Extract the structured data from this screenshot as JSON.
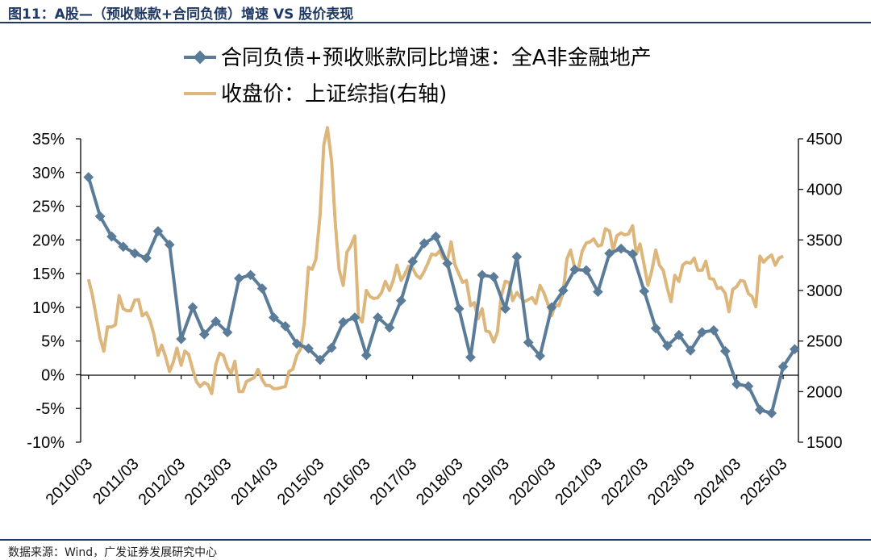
{
  "figure": {
    "title": "图11：A股—（预收账款+合同负债）增速 VS 股价表现",
    "source": "数据来源：Wind，广发证券发展研究中心"
  },
  "chart_data": {
    "type": "line",
    "dual_axis": true,
    "x_ticks": [
      "2010/03",
      "2011/03",
      "2012/03",
      "2013/03",
      "2014/03",
      "2015/03",
      "2016/03",
      "2017/03",
      "2018/03",
      "2019/03",
      "2020/03",
      "2021/03",
      "2022/03",
      "2023/03",
      "2024/03",
      "2025/03"
    ],
    "left_axis": {
      "ylim": [
        -10,
        35
      ],
      "ticks": [
        "35%",
        "30%",
        "25%",
        "20%",
        "15%",
        "10%",
        "5%",
        "0%",
        "-5%",
        "-10%"
      ]
    },
    "right_axis": {
      "ylim": [
        1500,
        4500
      ],
      "ticks": [
        "4500",
        "4000",
        "3500",
        "3000",
        "2500",
        "2000",
        "1500"
      ]
    },
    "series": [
      {
        "name": "合同负债+预收账款同比增速：全A非金融地产",
        "axis": "left",
        "color": "#5b7c99",
        "marker": "diamond",
        "points": [
          [
            2010.17,
            29.3
          ],
          [
            2010.42,
            23.5
          ],
          [
            2010.67,
            20.5
          ],
          [
            2010.92,
            19.0
          ],
          [
            2011.17,
            18.0
          ],
          [
            2011.42,
            17.3
          ],
          [
            2011.67,
            21.3
          ],
          [
            2011.92,
            19.3
          ],
          [
            2012.17,
            5.3
          ],
          [
            2012.42,
            10.0
          ],
          [
            2012.67,
            6.0
          ],
          [
            2012.92,
            7.9
          ],
          [
            2013.17,
            6.3
          ],
          [
            2013.42,
            14.3
          ],
          [
            2013.67,
            14.8
          ],
          [
            2013.92,
            12.8
          ],
          [
            2014.17,
            8.5
          ],
          [
            2014.42,
            7.2
          ],
          [
            2014.67,
            4.6
          ],
          [
            2014.92,
            3.9
          ],
          [
            2015.17,
            2.2
          ],
          [
            2015.42,
            4.0
          ],
          [
            2015.67,
            7.8
          ],
          [
            2015.92,
            8.5
          ],
          [
            2016.17,
            2.9
          ],
          [
            2016.42,
            8.5
          ],
          [
            2016.67,
            7.0
          ],
          [
            2016.92,
            11.0
          ],
          [
            2017.17,
            16.8
          ],
          [
            2017.42,
            19.5
          ],
          [
            2017.67,
            20.5
          ],
          [
            2017.92,
            16.5
          ],
          [
            2018.17,
            9.8
          ],
          [
            2018.42,
            2.6
          ],
          [
            2018.67,
            14.8
          ],
          [
            2018.92,
            14.5
          ],
          [
            2019.17,
            9.8
          ],
          [
            2019.42,
            17.5
          ],
          [
            2019.67,
            4.8
          ],
          [
            2019.92,
            2.8
          ],
          [
            2020.17,
            10.0
          ],
          [
            2020.42,
            12.5
          ],
          [
            2020.67,
            15.6
          ],
          [
            2020.92,
            15.5
          ],
          [
            2021.17,
            12.3
          ],
          [
            2021.42,
            18.0
          ],
          [
            2021.67,
            18.7
          ],
          [
            2021.92,
            17.9
          ],
          [
            2022.17,
            12.4
          ],
          [
            2022.42,
            6.9
          ],
          [
            2022.67,
            4.3
          ],
          [
            2022.92,
            5.9
          ],
          [
            2023.17,
            3.6
          ],
          [
            2023.42,
            6.3
          ],
          [
            2023.67,
            6.6
          ],
          [
            2023.92,
            3.5
          ],
          [
            2024.17,
            -1.4
          ],
          [
            2024.42,
            -1.7
          ],
          [
            2024.67,
            -5.2
          ],
          [
            2024.92,
            -5.7
          ],
          [
            2025.17,
            1.2
          ],
          [
            2025.42,
            3.8
          ]
        ]
      },
      {
        "name": "收盘价：上证综指(右轴)",
        "axis": "right",
        "color": "#dcb67a",
        "marker": "none",
        "points": [
          [
            2010.17,
            3110
          ],
          [
            2010.25,
            2960
          ],
          [
            2010.33,
            2760
          ],
          [
            2010.42,
            2530
          ],
          [
            2010.5,
            2400
          ],
          [
            2010.58,
            2640
          ],
          [
            2010.67,
            2640
          ],
          [
            2010.75,
            2660
          ],
          [
            2010.83,
            2950
          ],
          [
            2010.92,
            2820
          ],
          [
            2011.0,
            2800
          ],
          [
            2011.08,
            2800
          ],
          [
            2011.17,
            2905
          ],
          [
            2011.25,
            2910
          ],
          [
            2011.33,
            2750
          ],
          [
            2011.42,
            2780
          ],
          [
            2011.5,
            2700
          ],
          [
            2011.58,
            2570
          ],
          [
            2011.67,
            2360
          ],
          [
            2011.75,
            2460
          ],
          [
            2011.83,
            2350
          ],
          [
            2011.92,
            2200
          ],
          [
            2012.0,
            2290
          ],
          [
            2012.08,
            2430
          ],
          [
            2012.17,
            2260
          ],
          [
            2012.25,
            2400
          ],
          [
            2012.33,
            2370
          ],
          [
            2012.42,
            2220
          ],
          [
            2012.5,
            2100
          ],
          [
            2012.58,
            2050
          ],
          [
            2012.67,
            2090
          ],
          [
            2012.75,
            2070
          ],
          [
            2012.83,
            1980
          ],
          [
            2012.92,
            2270
          ],
          [
            2013.0,
            2380
          ],
          [
            2013.08,
            2360
          ],
          [
            2013.17,
            2240
          ],
          [
            2013.25,
            2180
          ],
          [
            2013.33,
            2300
          ],
          [
            2013.42,
            2000
          ],
          [
            2013.5,
            2000
          ],
          [
            2013.58,
            2100
          ],
          [
            2013.67,
            2120
          ],
          [
            2013.75,
            2140
          ],
          [
            2013.83,
            2220
          ],
          [
            2013.92,
            2120
          ],
          [
            2014.0,
            2060
          ],
          [
            2014.08,
            2060
          ],
          [
            2014.17,
            2030
          ],
          [
            2014.25,
            2030
          ],
          [
            2014.33,
            2040
          ],
          [
            2014.42,
            2050
          ],
          [
            2014.5,
            2200
          ],
          [
            2014.58,
            2220
          ],
          [
            2014.67,
            2360
          ],
          [
            2014.75,
            2420
          ],
          [
            2014.83,
            2680
          ],
          [
            2014.92,
            3230
          ],
          [
            2015.0,
            3210
          ],
          [
            2015.08,
            3310
          ],
          [
            2015.17,
            3750
          ],
          [
            2015.25,
            4440
          ],
          [
            2015.33,
            4610
          ],
          [
            2015.42,
            4280
          ],
          [
            2015.5,
            3660
          ],
          [
            2015.58,
            3210
          ],
          [
            2015.67,
            3050
          ],
          [
            2015.75,
            3380
          ],
          [
            2015.83,
            3440
          ],
          [
            2015.92,
            3540
          ],
          [
            2016.0,
            2740
          ],
          [
            2016.08,
            2690
          ],
          [
            2016.17,
            3000
          ],
          [
            2016.25,
            2940
          ],
          [
            2016.33,
            2920
          ],
          [
            2016.42,
            2930
          ],
          [
            2016.5,
            2980
          ],
          [
            2016.58,
            3090
          ],
          [
            2016.67,
            3000
          ],
          [
            2016.75,
            3100
          ],
          [
            2016.83,
            3250
          ],
          [
            2016.92,
            3100
          ],
          [
            2017.0,
            3160
          ],
          [
            2017.08,
            3240
          ],
          [
            2017.17,
            3220
          ],
          [
            2017.25,
            3150
          ],
          [
            2017.33,
            3120
          ],
          [
            2017.42,
            3190
          ],
          [
            2017.5,
            3270
          ],
          [
            2017.58,
            3360
          ],
          [
            2017.67,
            3350
          ],
          [
            2017.75,
            3390
          ],
          [
            2017.83,
            3320
          ],
          [
            2017.92,
            3300
          ],
          [
            2018.0,
            3480
          ],
          [
            2018.08,
            3260
          ],
          [
            2018.17,
            3160
          ],
          [
            2018.25,
            3080
          ],
          [
            2018.33,
            3100
          ],
          [
            2018.42,
            2850
          ],
          [
            2018.5,
            2880
          ],
          [
            2018.58,
            2720
          ],
          [
            2018.67,
            2820
          ],
          [
            2018.75,
            2600
          ],
          [
            2018.83,
            2590
          ],
          [
            2018.92,
            2490
          ],
          [
            2019.0,
            2590
          ],
          [
            2019.08,
            2940
          ],
          [
            2019.17,
            3090
          ],
          [
            2019.25,
            3080
          ],
          [
            2019.33,
            2900
          ],
          [
            2019.42,
            2980
          ],
          [
            2019.5,
            2930
          ],
          [
            2019.58,
            2890
          ],
          [
            2019.67,
            2910
          ],
          [
            2019.75,
            2930
          ],
          [
            2019.83,
            2870
          ],
          [
            2019.92,
            3050
          ],
          [
            2020.0,
            2980
          ],
          [
            2020.08,
            2880
          ],
          [
            2020.17,
            2750
          ],
          [
            2020.25,
            2860
          ],
          [
            2020.33,
            2850
          ],
          [
            2020.42,
            2980
          ],
          [
            2020.5,
            3310
          ],
          [
            2020.58,
            3400
          ],
          [
            2020.67,
            3220
          ],
          [
            2020.75,
            3220
          ],
          [
            2020.83,
            3390
          ],
          [
            2020.92,
            3470
          ],
          [
            2021.0,
            3480
          ],
          [
            2021.08,
            3510
          ],
          [
            2021.17,
            3440
          ],
          [
            2021.25,
            3450
          ],
          [
            2021.33,
            3610
          ],
          [
            2021.42,
            3590
          ],
          [
            2021.5,
            3400
          ],
          [
            2021.58,
            3540
          ],
          [
            2021.67,
            3570
          ],
          [
            2021.75,
            3550
          ],
          [
            2021.83,
            3560
          ],
          [
            2021.92,
            3640
          ],
          [
            2022.0,
            3360
          ],
          [
            2022.08,
            3460
          ],
          [
            2022.17,
            3250
          ],
          [
            2022.25,
            3050
          ],
          [
            2022.33,
            3190
          ],
          [
            2022.42,
            3400
          ],
          [
            2022.5,
            3250
          ],
          [
            2022.58,
            3200
          ],
          [
            2022.67,
            3020
          ],
          [
            2022.75,
            2890
          ],
          [
            2022.83,
            3150
          ],
          [
            2022.92,
            3090
          ],
          [
            2023.0,
            3250
          ],
          [
            2023.08,
            3280
          ],
          [
            2023.17,
            3270
          ],
          [
            2023.25,
            3320
          ],
          [
            2023.33,
            3200
          ],
          [
            2023.42,
            3200
          ],
          [
            2023.5,
            3290
          ],
          [
            2023.58,
            3120
          ],
          [
            2023.67,
            3110
          ],
          [
            2023.75,
            3020
          ],
          [
            2023.83,
            3030
          ],
          [
            2023.92,
            2970
          ],
          [
            2024.0,
            2790
          ],
          [
            2024.08,
            3010
          ],
          [
            2024.17,
            3040
          ],
          [
            2024.25,
            3100
          ],
          [
            2024.33,
            3090
          ],
          [
            2024.42,
            2970
          ],
          [
            2024.5,
            2940
          ],
          [
            2024.58,
            2840
          ],
          [
            2024.67,
            3340
          ],
          [
            2024.75,
            3280
          ],
          [
            2024.83,
            3320
          ],
          [
            2024.92,
            3350
          ],
          [
            2025.0,
            3250
          ],
          [
            2025.08,
            3320
          ],
          [
            2025.17,
            3340
          ]
        ]
      }
    ]
  }
}
